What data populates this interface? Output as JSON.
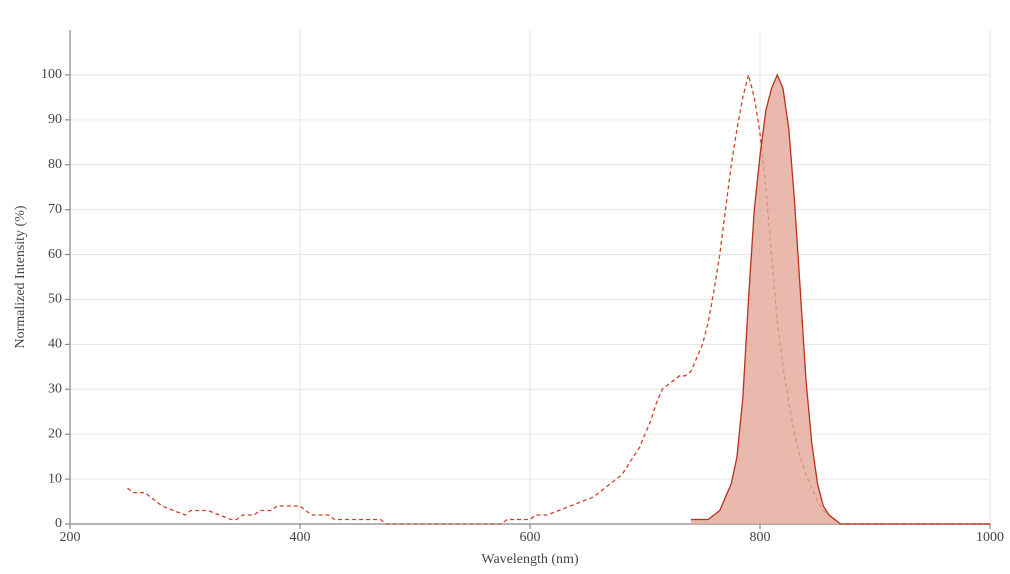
{
  "chart_data": {
    "type": "line",
    "x_label": "Wavelength (nm)",
    "y_label": "Normalized Intensity (%)",
    "xlim": [
      200,
      1000
    ],
    "xticks": [
      200,
      400,
      600,
      800,
      1000
    ],
    "ylim": [
      0,
      110
    ],
    "yticks": [
      0,
      10,
      20,
      30,
      40,
      50,
      60,
      70,
      80,
      90,
      100
    ],
    "grid": true,
    "series": [
      {
        "color": "#c8452c",
        "dashed": true,
        "filled": false,
        "x": [
          250,
          255,
          265,
          270,
          275,
          280,
          290,
          300,
          305,
          320,
          330,
          340,
          345,
          350,
          360,
          365,
          375,
          380,
          400,
          405,
          410,
          425,
          430,
          470,
          475,
          575,
          580,
          600,
          605,
          615,
          625,
          635,
          645,
          655,
          660,
          665,
          670,
          680,
          685,
          690,
          695,
          700,
          705,
          710,
          715,
          720,
          725,
          730,
          735,
          740,
          745,
          750,
          755,
          760,
          765,
          770,
          775,
          780,
          785,
          790,
          795,
          800,
          805,
          810,
          815,
          820,
          825,
          830,
          835,
          840,
          845,
          850,
          855,
          860,
          865,
          870,
          1000
        ],
        "values": [
          8,
          7,
          7,
          6,
          5,
          4,
          3,
          2,
          3,
          3,
          2,
          1,
          1,
          2,
          2,
          3,
          3,
          4,
          4,
          3,
          2,
          2,
          1,
          1,
          0,
          0,
          1,
          1,
          2,
          2,
          3,
          4,
          5,
          6,
          7,
          8,
          9,
          11,
          13,
          15,
          17,
          20,
          23,
          27,
          30,
          31,
          32,
          33,
          33,
          34,
          37,
          40,
          45,
          52,
          60,
          70,
          80,
          88,
          95,
          100,
          95,
          87,
          75,
          60,
          45,
          35,
          27,
          20,
          15,
          11,
          8,
          5,
          3,
          2,
          1,
          0,
          0
        ]
      },
      {
        "color": "#b8321c",
        "fill_color": "#e2a797",
        "dashed": false,
        "filled": true,
        "x": [
          740,
          755,
          760,
          765,
          770,
          775,
          780,
          785,
          790,
          795,
          800,
          805,
          810,
          815,
          820,
          825,
          830,
          835,
          840,
          845,
          850,
          855,
          860,
          865,
          870,
          1000
        ],
        "values": [
          1,
          1,
          2,
          3,
          6,
          9,
          15,
          28,
          50,
          70,
          82,
          92,
          97,
          100,
          97,
          88,
          72,
          52,
          32,
          18,
          9,
          4,
          2,
          1,
          0,
          0
        ]
      }
    ]
  }
}
